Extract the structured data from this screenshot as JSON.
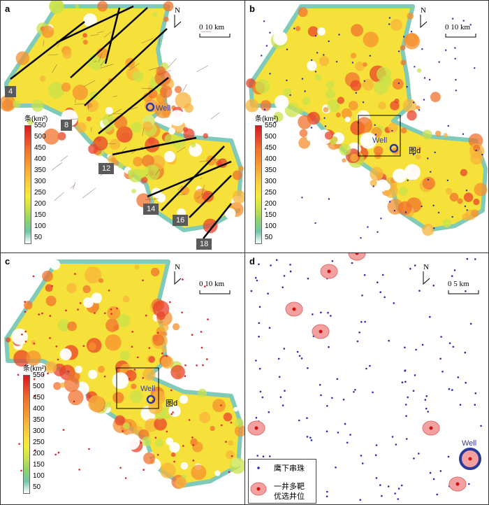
{
  "panels": {
    "a": {
      "label": "a",
      "north": "N",
      "scale": "0  10 km"
    },
    "b": {
      "label": "b",
      "north": "N",
      "scale": "0  10 km",
      "fig_ref": "图d"
    },
    "c": {
      "label": "c",
      "north": "N",
      "scale": "0  10 km",
      "fig_ref": "图d"
    },
    "d": {
      "label": "d",
      "north": "N",
      "scale": "0   5 km"
    }
  },
  "legend": {
    "unit": "条(km²)",
    "ticks": [
      "550",
      "500",
      "450",
      "400",
      "350",
      "300",
      "250",
      "200",
      "150",
      "100",
      "50"
    ],
    "colors": [
      "#d7191c",
      "#e8432a",
      "#f0712e",
      "#f5902f",
      "#f8b33a",
      "#fbd33e",
      "#f3ec3a",
      "#c9e24a",
      "#8fd46a",
      "#6fc6a7",
      "#ffffff"
    ]
  },
  "fault_labels": [
    "4",
    "8",
    "12",
    "14",
    "16",
    "18"
  ],
  "well_label": "Well",
  "d_legend": {
    "item1": "鹰下串珠",
    "item2_line1": "一井多靶",
    "item2_line2": "优选井位"
  },
  "colors": {
    "well_ring": "#2a3a9a",
    "fault": "#000000",
    "point": "#2a2ab0",
    "red_point": "#e0202a",
    "target_fill": "#f2a0a0"
  }
}
